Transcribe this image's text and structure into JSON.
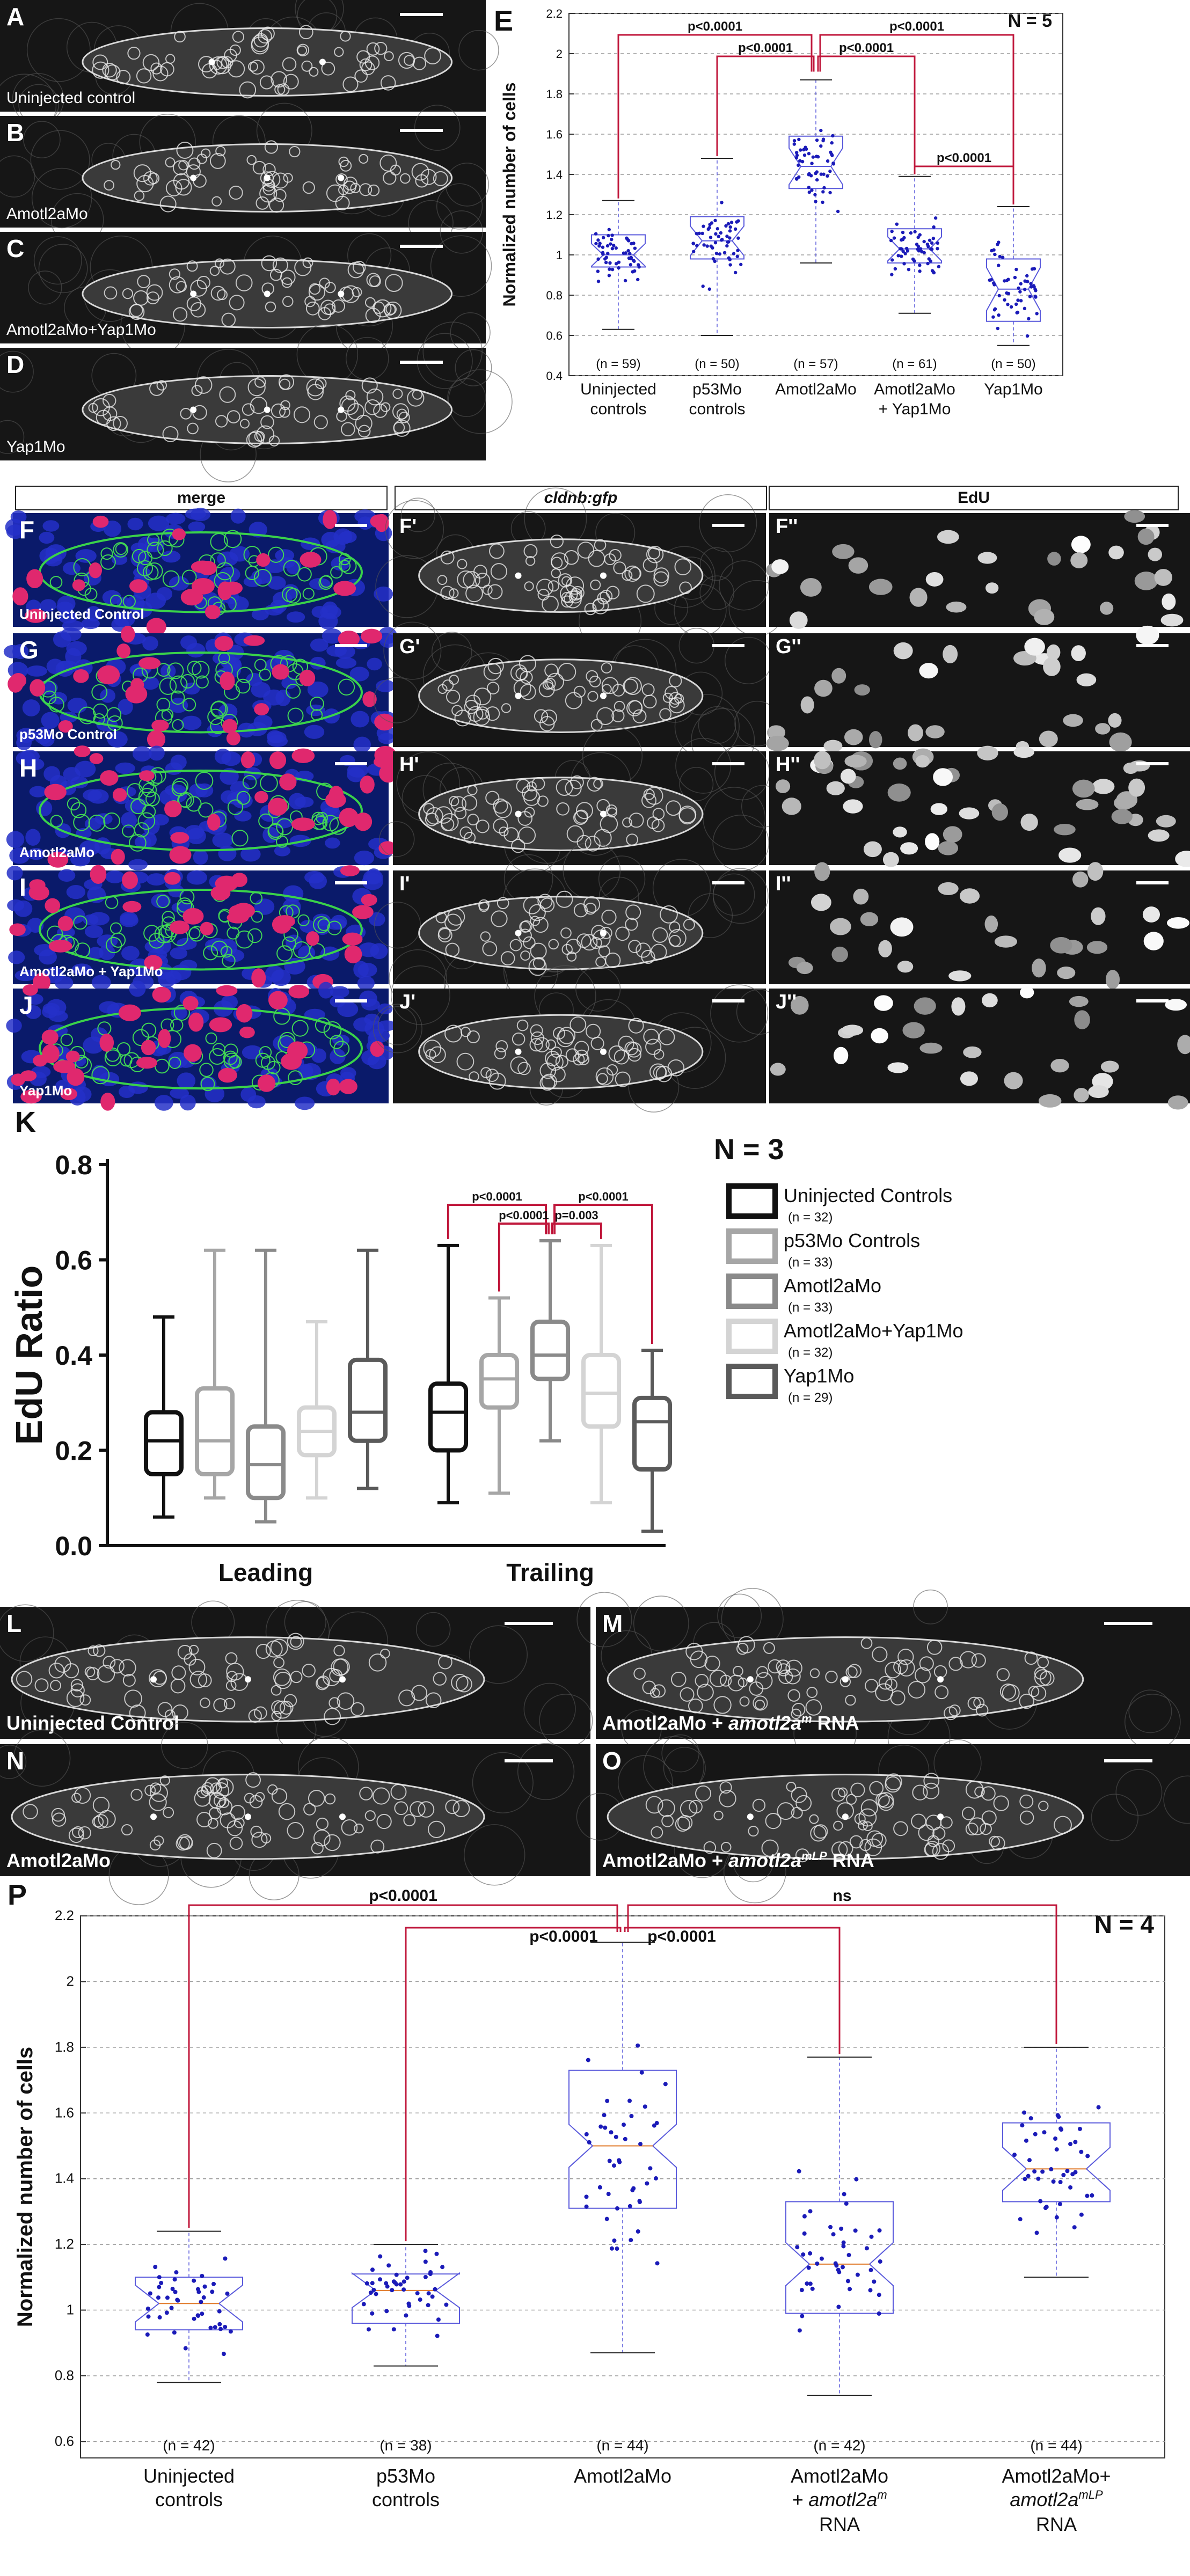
{
  "panels_A_D": [
    {
      "letter": "A",
      "caption": "Uninjected control"
    },
    {
      "letter": "B",
      "caption": "Amotl2aMo"
    },
    {
      "letter": "C",
      "caption": "Amotl2aMo+Yap1Mo"
    },
    {
      "letter": "D",
      "caption": "Yap1Mo"
    }
  ],
  "panel_E": {
    "letter": "E",
    "n_label": "N = 5",
    "ylabel": "Normalized number of cells",
    "yticks": [
      "0.4",
      "0.6",
      "0.8",
      "1",
      "1.2",
      "1.4",
      "1.6",
      "1.8",
      "2",
      "2.2"
    ],
    "groups": [
      {
        "label": "Uninjected",
        "label2": "controls",
        "n": "(n = 59)"
      },
      {
        "label": "p53Mo",
        "label2": "controls",
        "n": "(n = 50)"
      },
      {
        "label": "Amotl2aMo",
        "label2": "",
        "n": "(n = 57)"
      },
      {
        "label": "Amotl2aMo",
        "label2": "+ Yap1Mo",
        "n": "(n = 61)"
      },
      {
        "label": "Yap1Mo",
        "label2": "",
        "n": "(n = 50)"
      }
    ],
    "pvalues": [
      "p<0.0001",
      "p<0.0001",
      "p<0.0001",
      "p<0.0001",
      "p<0.0001"
    ]
  },
  "column_heads": {
    "merge": "merge",
    "gfp": "cldnb:gfp",
    "edu": "EdU"
  },
  "panels_F_J": [
    {
      "row": "F",
      "caption": "Uninjected Control",
      "gfp": "F'",
      "edu": "F''"
    },
    {
      "row": "G",
      "caption": "p53Mo Control",
      "gfp": "G'",
      "edu": "G''"
    },
    {
      "row": "H",
      "caption": "Amotl2aMo",
      "gfp": "H'",
      "edu": "H''"
    },
    {
      "row": "I",
      "caption": "Amotl2aMo + Yap1Mo",
      "gfp": "I'",
      "edu": "I''"
    },
    {
      "row": "J",
      "caption": "Yap1Mo",
      "gfp": "J'",
      "edu": "J''"
    }
  ],
  "panel_K": {
    "letter": "K",
    "n_label": "N = 3",
    "ylabel": "EdU Ratio",
    "yticks": [
      "0.0",
      "0.2",
      "0.4",
      "0.6",
      "0.8"
    ],
    "categories": [
      "Leading",
      "Trailing"
    ],
    "legend": [
      {
        "name": "Uninjected Controls",
        "n": "(n = 32)",
        "color": "#111111"
      },
      {
        "name": "p53Mo Controls",
        "n": "(n = 33)",
        "color": "#a6a6a6"
      },
      {
        "name": "Amotl2aMo",
        "n": "(n = 33)",
        "color": "#8a8a8a"
      },
      {
        "name": "Amotl2aMo+Yap1Mo",
        "n": "(n = 32)",
        "color": "#d4d4d4"
      },
      {
        "name": "Yap1Mo",
        "n": "(n = 29)",
        "color": "#5a5a5a"
      }
    ],
    "pvalues": [
      "p<0.0001",
      "p<0.0001",
      "p=0.003",
      "p<0.0001"
    ]
  },
  "panels_L_O": [
    {
      "letter": "L",
      "caption": "Uninjected Control"
    },
    {
      "letter": "M",
      "caption": "Amotl2aMo + ",
      "italic": "amotl2a",
      "sup": "m",
      "tail": " RNA"
    },
    {
      "letter": "N",
      "caption": "Amotl2aMo"
    },
    {
      "letter": "O",
      "caption": "Amotl2aMo + ",
      "italic": "amotl2a",
      "sup": "mLP",
      "tail": " RNA"
    }
  ],
  "panel_P": {
    "letter": "P",
    "n_label": "N = 4",
    "ylabel": "Normalized number of cells",
    "yticks": [
      "0.6",
      "0.8",
      "1",
      "1.2",
      "1.4",
      "1.6",
      "1.8",
      "2",
      "2.2"
    ],
    "groups": [
      {
        "l1": "Uninjected",
        "l2": "controls",
        "l3": "",
        "n": "(n = 42)"
      },
      {
        "l1": "p53Mo",
        "l2": "controls",
        "l3": "",
        "n": "(n = 38)"
      },
      {
        "l1": "Amotl2aMo",
        "l2": "",
        "l3": "",
        "n": "(n = 44)"
      },
      {
        "l1": "Amotl2aMo",
        "l2": "+ amotl2a",
        "sup2": "m",
        "l3": "RNA",
        "n": "(n = 42)"
      },
      {
        "l1": "Amotl2aMo+",
        "l2": "amotl2a",
        "sup2": "mLP",
        "l3": "RNA",
        "n": "(n = 44)"
      }
    ],
    "pvalues": [
      "p<0.0001",
      "p<0.0001",
      "p<0.0001",
      "ns"
    ]
  },
  "chart_data": [
    {
      "type": "box",
      "panel": "E",
      "ylabel": "Normalized number of cells",
      "ylim": [
        0.4,
        2.2
      ],
      "categories": [
        "Uninjected controls",
        "p53Mo controls",
        "Amotl2aMo",
        "Amotl2aMo + Yap1Mo",
        "Yap1Mo"
      ],
      "median": [
        1.0,
        1.07,
        1.44,
        1.03,
        0.83
      ],
      "q1": [
        0.94,
        0.98,
        1.33,
        0.96,
        0.67
      ],
      "q3": [
        1.1,
        1.19,
        1.59,
        1.13,
        0.98
      ],
      "whisker_low": [
        0.63,
        0.6,
        0.96,
        0.71,
        0.55
      ],
      "whisker_high": [
        1.27,
        1.48,
        1.87,
        1.39,
        1.24
      ],
      "grid": true
    },
    {
      "type": "box",
      "panel": "K",
      "ylabel": "EdU Ratio",
      "ylim": [
        0.0,
        0.8
      ],
      "categories": [
        "Leading",
        "Trailing"
      ],
      "series": [
        {
          "name": "Uninjected Controls",
          "min": [
            0.06,
            0.09
          ],
          "q1": [
            0.15,
            0.2
          ],
          "median": [
            0.22,
            0.28
          ],
          "q3": [
            0.28,
            0.34
          ],
          "max": [
            0.48,
            0.63
          ]
        },
        {
          "name": "p53Mo Controls",
          "min": [
            0.1,
            0.11
          ],
          "q1": [
            0.15,
            0.29
          ],
          "median": [
            0.22,
            0.35
          ],
          "q3": [
            0.33,
            0.4
          ],
          "max": [
            0.62,
            0.52
          ]
        },
        {
          "name": "Amotl2aMo",
          "min": [
            0.05,
            0.22
          ],
          "q1": [
            0.1,
            0.35
          ],
          "median": [
            0.17,
            0.4
          ],
          "q3": [
            0.25,
            0.47
          ],
          "max": [
            0.62,
            0.64
          ]
        },
        {
          "name": "Amotl2aMo+Yap1Mo",
          "min": [
            0.1,
            0.09
          ],
          "q1": [
            0.19,
            0.25
          ],
          "median": [
            0.24,
            0.32
          ],
          "q3": [
            0.29,
            0.4
          ],
          "max": [
            0.47,
            0.63
          ]
        },
        {
          "name": "Yap1Mo",
          "min": [
            0.12,
            0.03
          ],
          "q1": [
            0.22,
            0.16
          ],
          "median": [
            0.28,
            0.26
          ],
          "q3": [
            0.39,
            0.31
          ],
          "max": [
            0.62,
            0.41
          ]
        }
      ]
    },
    {
      "type": "box",
      "panel": "P",
      "ylabel": "Normalized number of cells",
      "ylim": [
        0.55,
        2.2
      ],
      "categories": [
        "Uninjected controls",
        "p53Mo controls",
        "Amotl2aMo",
        "Amotl2aMo + amotl2a m RNA",
        "Amotl2aMo+ amotl2a mLP RNA"
      ],
      "median": [
        1.02,
        1.06,
        1.5,
        1.14,
        1.43
      ],
      "q1": [
        0.94,
        0.96,
        1.31,
        0.99,
        1.33
      ],
      "q3": [
        1.1,
        1.11,
        1.73,
        1.33,
        1.57
      ],
      "whisker_low": [
        0.78,
        0.83,
        0.87,
        0.74,
        1.1
      ],
      "whisker_high": [
        1.24,
        1.2,
        2.12,
        1.77,
        1.8
      ],
      "grid": true
    }
  ]
}
